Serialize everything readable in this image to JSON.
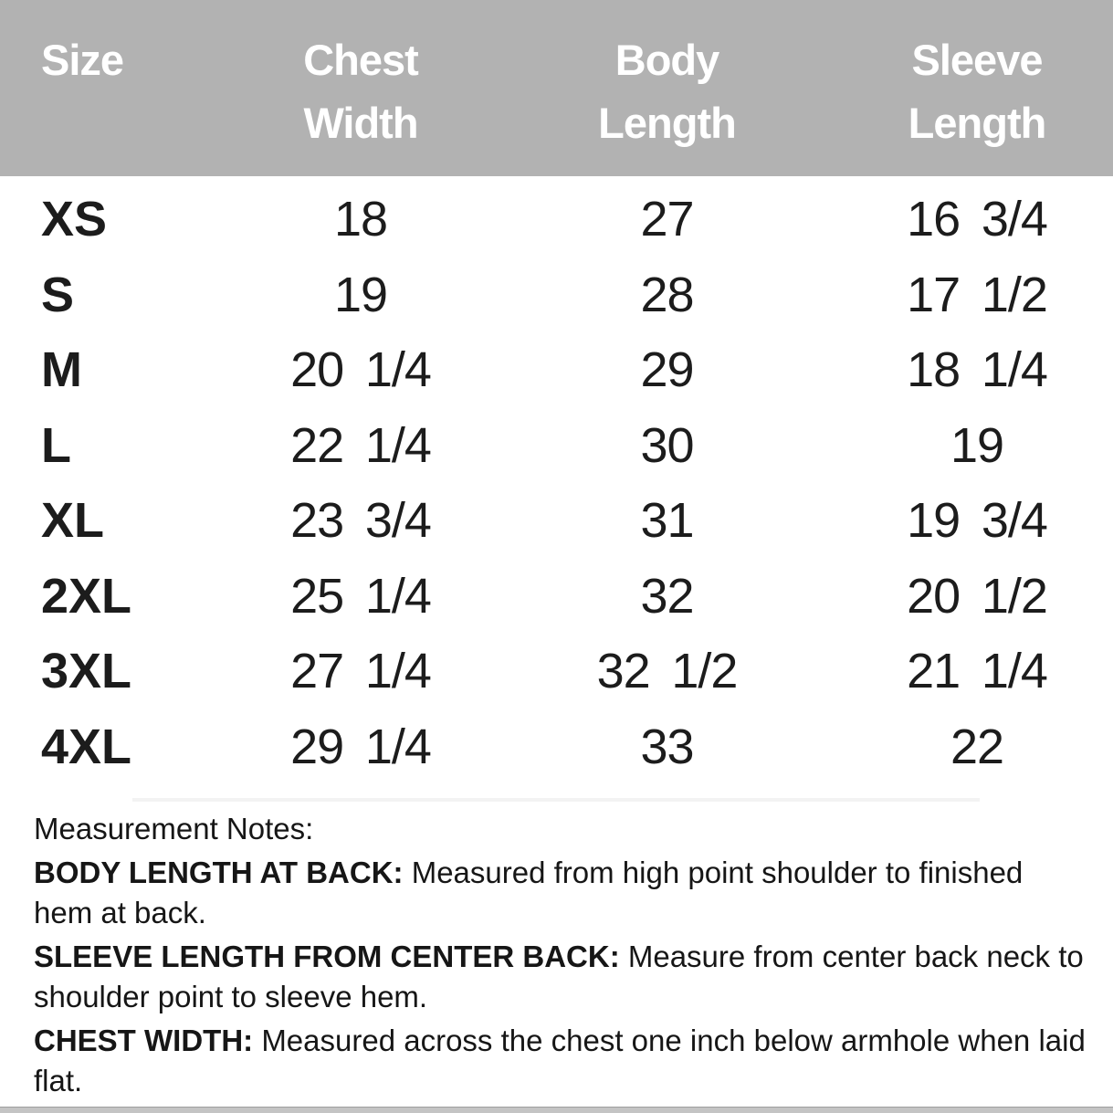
{
  "header": {
    "columns": [
      {
        "line1": "Size",
        "line2": ""
      },
      {
        "line1": "Chest",
        "line2": "Width"
      },
      {
        "line1": "Body",
        "line2": "Length"
      },
      {
        "line1": "Sleeve",
        "line2": "Length"
      }
    ]
  },
  "table": {
    "rows": [
      {
        "size": "XS",
        "chest_width": "18",
        "body_length": "27",
        "sleeve_length": "16 3/4"
      },
      {
        "size": "S",
        "chest_width": "19",
        "body_length": "28",
        "sleeve_length": "17 1/2"
      },
      {
        "size": "M",
        "chest_width": "20 1/4",
        "body_length": "29",
        "sleeve_length": "18 1/4"
      },
      {
        "size": "L",
        "chest_width": "22 1/4",
        "body_length": "30",
        "sleeve_length": "19"
      },
      {
        "size": "XL",
        "chest_width": "23 3/4",
        "body_length": "31",
        "sleeve_length": "19 3/4"
      },
      {
        "size": "2XL",
        "chest_width": "25 1/4",
        "body_length": "32",
        "sleeve_length": "20 1/2"
      },
      {
        "size": "3XL",
        "chest_width": "27 1/4",
        "body_length": "32 1/2",
        "sleeve_length": "21 1/4"
      },
      {
        "size": "4XL",
        "chest_width": "29 1/4",
        "body_length": "33",
        "sleeve_length": "22"
      }
    ]
  },
  "notes": {
    "heading": "Measurement Notes:",
    "items": [
      {
        "label": "BODY LENGTH AT BACK:",
        "text": "Measured from high point shoulder to finished hem at back."
      },
      {
        "label": "SLEEVE LENGTH FROM CENTER BACK:",
        "text": "Measure from center back neck to shoulder point to sleeve hem."
      },
      {
        "label": "CHEST WIDTH:",
        "text": "Measured across the chest one inch below armhole when laid flat."
      }
    ]
  },
  "colors": {
    "header_bg": "#b2b2b2",
    "header_text": "#ffffff",
    "body_text": "#1c1c1c",
    "divider": "#f3f3f3",
    "bottom_bar": "#c4c4c4",
    "bottom_bar_edge": "#9e9e9e"
  }
}
